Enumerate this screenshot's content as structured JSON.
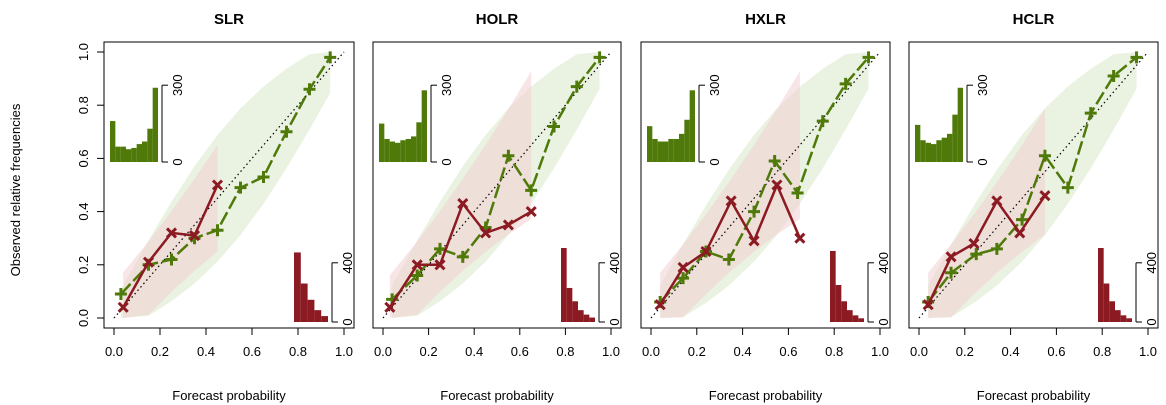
{
  "ylabel": "Observed relative frequencies",
  "xlabel": "Forecast probability",
  "x_ticks": [
    "0.0",
    "0.2",
    "0.4",
    "0.6",
    "0.8",
    "1.0"
  ],
  "y_ticks": [
    "0.0",
    "0.2",
    "0.4",
    "0.6",
    "0.8",
    "1.0"
  ],
  "colors": {
    "green": "#4F7A0A",
    "red": "#8B1A22",
    "green_band": "#d9e8c9",
    "red_band": "#f0d0d4"
  },
  "chart_data": [
    {
      "type": "line",
      "title": "SLR",
      "xlabel": "Forecast probability",
      "ylabel": "Observed relative frequencies",
      "xlim": [
        0,
        1
      ],
      "ylim": [
        0,
        1
      ],
      "series": [
        {
          "color": "green",
          "marker": "plus",
          "x": [
            0.03,
            0.15,
            0.25,
            0.35,
            0.45,
            0.55,
            0.65,
            0.75,
            0.85,
            0.94
          ],
          "y": [
            0.09,
            0.2,
            0.22,
            0.3,
            0.33,
            0.49,
            0.53,
            0.7,
            0.86,
            0.98
          ]
        },
        {
          "color": "red",
          "marker": "x",
          "x": [
            0.04,
            0.15,
            0.25,
            0.35,
            0.45
          ],
          "y": [
            0.04,
            0.21,
            0.32,
            0.31,
            0.5
          ]
        }
      ],
      "inset_hist_green": {
        "ticks": [
          "0",
          "300"
        ],
        "max": 300,
        "values": [
          160,
          60,
          60,
          50,
          55,
          70,
          80,
          130,
          290
        ]
      },
      "inset_hist_red": {
        "ticks": [
          "0",
          "400"
        ],
        "max": 400,
        "values": [
          470,
          260,
          150,
          80,
          40
        ]
      }
    },
    {
      "type": "line",
      "title": "HOLR",
      "xlabel": "Forecast probability",
      "xlim": [
        0,
        1
      ],
      "ylim": [
        0,
        1
      ],
      "series": [
        {
          "color": "green",
          "marker": "plus",
          "x": [
            0.04,
            0.15,
            0.25,
            0.35,
            0.45,
            0.55,
            0.65,
            0.75,
            0.85,
            0.95
          ],
          "y": [
            0.07,
            0.16,
            0.26,
            0.23,
            0.34,
            0.61,
            0.48,
            0.72,
            0.87,
            0.98
          ]
        },
        {
          "color": "red",
          "marker": "x",
          "x": [
            0.03,
            0.15,
            0.25,
            0.35,
            0.45,
            0.55,
            0.65
          ],
          "y": [
            0.04,
            0.2,
            0.2,
            0.43,
            0.32,
            0.35,
            0.4
          ]
        }
      ],
      "inset_hist_green": {
        "ticks": [
          "0",
          "300"
        ],
        "max": 300,
        "values": [
          150,
          90,
          80,
          75,
          85,
          90,
          100,
          155,
          280
        ]
      },
      "inset_hist_red": {
        "ticks": [
          "0",
          "400"
        ],
        "max": 400,
        "values": [
          500,
          230,
          140,
          80,
          50,
          30
        ]
      }
    },
    {
      "type": "line",
      "title": "HXLR",
      "xlabel": "Forecast probability",
      "xlim": [
        0,
        1
      ],
      "ylim": [
        0,
        1
      ],
      "series": [
        {
          "color": "green",
          "marker": "plus",
          "x": [
            0.04,
            0.14,
            0.24,
            0.34,
            0.45,
            0.54,
            0.64,
            0.75,
            0.85,
            0.95
          ],
          "y": [
            0.06,
            0.15,
            0.25,
            0.22,
            0.4,
            0.59,
            0.47,
            0.74,
            0.88,
            0.98
          ]
        },
        {
          "color": "red",
          "marker": "x",
          "x": [
            0.04,
            0.14,
            0.24,
            0.35,
            0.45,
            0.55,
            0.65
          ],
          "y": [
            0.05,
            0.19,
            0.25,
            0.44,
            0.29,
            0.5,
            0.3
          ]
        }
      ],
      "inset_hist_green": {
        "ticks": [
          "0",
          "300"
        ],
        "max": 300,
        "values": [
          140,
          90,
          80,
          80,
          90,
          90,
          110,
          165,
          280
        ]
      },
      "inset_hist_red": {
        "ticks": [
          "0",
          "400"
        ],
        "max": 400,
        "values": [
          480,
          250,
          140,
          80,
          45,
          25
        ]
      }
    },
    {
      "type": "line",
      "title": "HCLR",
      "xlabel": "Forecast probability",
      "xlim": [
        0,
        1
      ],
      "ylim": [
        0,
        1
      ],
      "series": [
        {
          "color": "green",
          "marker": "plus",
          "x": [
            0.04,
            0.14,
            0.25,
            0.34,
            0.45,
            0.55,
            0.65,
            0.75,
            0.85,
            0.95
          ],
          "y": [
            0.06,
            0.17,
            0.24,
            0.26,
            0.37,
            0.61,
            0.49,
            0.77,
            0.91,
            0.98
          ]
        },
        {
          "color": "red",
          "marker": "x",
          "x": [
            0.04,
            0.14,
            0.24,
            0.34,
            0.44,
            0.55
          ],
          "y": [
            0.05,
            0.23,
            0.28,
            0.44,
            0.32,
            0.46
          ]
        }
      ],
      "inset_hist_green": {
        "ticks": [
          "0",
          "300"
        ],
        "max": 300,
        "values": [
          145,
          85,
          75,
          70,
          85,
          95,
          110,
          185,
          290
        ]
      },
      "inset_hist_red": {
        "ticks": [
          "0",
          "400"
        ],
        "max": 400,
        "values": [
          520,
          260,
          140,
          80,
          45,
          25
        ]
      }
    }
  ]
}
